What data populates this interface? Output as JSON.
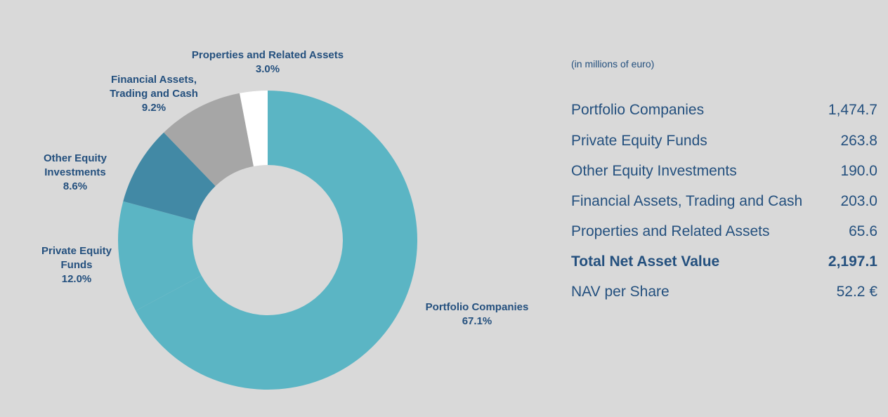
{
  "chart_data": {
    "type": "pie",
    "variant": "donut",
    "units": "(in millions of euro)",
    "slices": [
      {
        "name": "Portfolio Companies",
        "value": 67.1,
        "value_label": "67.1%",
        "color": "#5bb5c4"
      },
      {
        "name": "Private Equity Funds",
        "value": 12.0,
        "value_label": "12.0%",
        "color": "#5bb5c4"
      },
      {
        "name": "Other Equity Investments",
        "value": 8.6,
        "value_label": "8.6%",
        "color": "#4289a5"
      },
      {
        "name": "Financial Assets, Trading and Cash",
        "value": 9.2,
        "value_label": "9.2%",
        "color": "#a6a6a6"
      },
      {
        "name": "Properties and Related Assets",
        "value": 3.0,
        "value_label": "3.0%",
        "color": "#ffffff"
      }
    ]
  },
  "labels": {
    "portfolio": {
      "line1": "Portfolio Companies",
      "pct": "67.1%"
    },
    "private_equity": {
      "line1": "Private Equity",
      "line2": "Funds",
      "pct": "12.0%"
    },
    "other_equity": {
      "line1": "Other Equity",
      "line2": "Investments",
      "pct": "8.6%"
    },
    "financial": {
      "line1": "Financial Assets,",
      "line2": "Trading and Cash",
      "pct": "9.2%"
    },
    "properties": {
      "line1": "Properties and Related Assets",
      "pct": "3.0%"
    }
  },
  "table": {
    "units": "(in millions of euro)",
    "rows": [
      {
        "label": "Portfolio Companies",
        "value": "1,474.7"
      },
      {
        "label": "Private Equity Funds",
        "value": "263.8"
      },
      {
        "label": "Other Equity Investments",
        "value": "190.0"
      },
      {
        "label": "Financial Assets, Trading and Cash",
        "value": "203.0"
      },
      {
        "label": "Properties and Related Assets",
        "value": "65.6"
      }
    ],
    "total": {
      "label": "Total Net Asset Value",
      "value": "2,197.1"
    },
    "nav": {
      "label": "NAV per Share",
      "value": "52.2 €"
    }
  }
}
